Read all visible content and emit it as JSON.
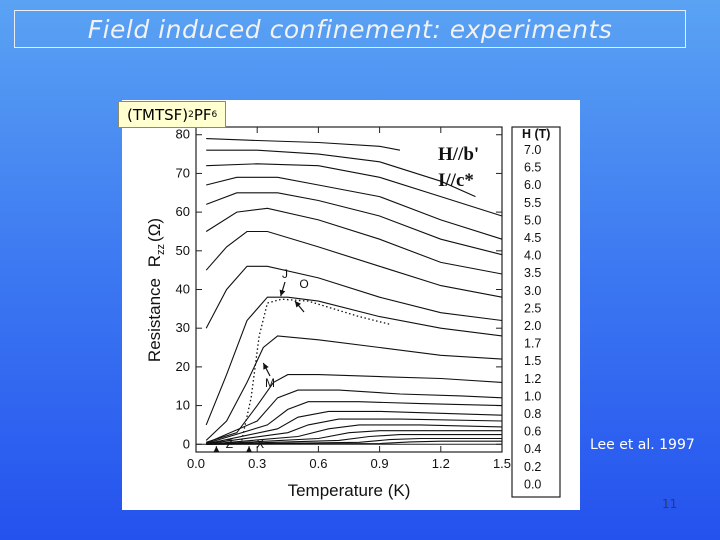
{
  "slide": {
    "title": "Field induced confinement: experiments",
    "citation": "Lee et al. 1997",
    "page_number": "11"
  },
  "compound": {
    "base": "(TMTSF)",
    "sub1": "2",
    "mid": "PF",
    "sub2": "6"
  },
  "chart_data": {
    "type": "line",
    "xlabel": "Temperature (K)",
    "ylabel": "Resistance",
    "ylabel_sub": "R",
    "ylabel_sub_index": "zz",
    "ylabel_unit": "(Ω)",
    "xlim": [
      0.0,
      1.5
    ],
    "ylim": [
      -2,
      82
    ],
    "xticks": [
      "0.0",
      "0.3",
      "0.6",
      "0.9",
      "1.2",
      "1.5"
    ],
    "yticks": [
      "0",
      "10",
      "20",
      "30",
      "40",
      "50",
      "60",
      "70",
      "80"
    ],
    "legend_title": "H (T)",
    "legend": [
      "7.0",
      "6.5",
      "6.0",
      "5.5",
      "5.0",
      "4.5",
      "4.0",
      "3.5",
      "3.0",
      "2.5",
      "2.0",
      "1.7",
      "1.5",
      "1.2",
      "1.0",
      "0.8",
      "0.6",
      "0.4",
      "0.2",
      "0.0"
    ],
    "annotations": {
      "field": "H//b'",
      "current": "I//c*"
    },
    "markers": [
      "J",
      "O",
      "M",
      "Z",
      "X"
    ],
    "series": [
      {
        "name": "7.0",
        "points": [
          [
            0.05,
            79
          ],
          [
            0.3,
            78.5
          ],
          [
            0.6,
            78
          ],
          [
            0.9,
            77
          ],
          [
            1.0,
            76
          ]
        ]
      },
      {
        "name": "6.5",
        "points": [
          [
            0.05,
            76
          ],
          [
            0.3,
            76
          ],
          [
            0.6,
            75
          ],
          [
            0.9,
            73
          ],
          [
            1.2,
            68
          ],
          [
            1.37,
            64
          ]
        ]
      },
      {
        "name": "6.0",
        "points": [
          [
            0.05,
            72
          ],
          [
            0.3,
            72.5
          ],
          [
            0.6,
            72
          ],
          [
            0.9,
            69
          ],
          [
            1.2,
            64
          ],
          [
            1.5,
            59
          ]
        ]
      },
      {
        "name": "5.5",
        "points": [
          [
            0.05,
            67
          ],
          [
            0.2,
            69
          ],
          [
            0.4,
            69
          ],
          [
            0.6,
            67
          ],
          [
            0.9,
            64
          ],
          [
            1.2,
            58
          ],
          [
            1.5,
            53
          ]
        ]
      },
      {
        "name": "5.0",
        "points": [
          [
            0.05,
            62
          ],
          [
            0.2,
            65
          ],
          [
            0.4,
            65
          ],
          [
            0.6,
            63
          ],
          [
            0.9,
            59
          ],
          [
            1.2,
            53
          ],
          [
            1.5,
            49
          ]
        ]
      },
      {
        "name": "4.5",
        "points": [
          [
            0.05,
            55
          ],
          [
            0.2,
            60
          ],
          [
            0.35,
            61
          ],
          [
            0.6,
            58
          ],
          [
            0.9,
            53
          ],
          [
            1.2,
            47
          ],
          [
            1.5,
            44
          ]
        ]
      },
      {
        "name": "4.0",
        "points": [
          [
            0.05,
            45
          ],
          [
            0.15,
            51
          ],
          [
            0.25,
            55
          ],
          [
            0.35,
            55
          ],
          [
            0.6,
            51
          ],
          [
            0.9,
            46
          ],
          [
            1.2,
            41
          ],
          [
            1.5,
            38
          ]
        ]
      },
      {
        "name": "3.5",
        "points": [
          [
            0.05,
            30
          ],
          [
            0.15,
            40
          ],
          [
            0.25,
            46
          ],
          [
            0.35,
            46
          ],
          [
            0.6,
            43
          ],
          [
            0.9,
            38
          ],
          [
            1.2,
            34
          ],
          [
            1.5,
            32
          ]
        ]
      },
      {
        "name": "3.0",
        "points": [
          [
            0.05,
            5
          ],
          [
            0.15,
            18
          ],
          [
            0.25,
            32
          ],
          [
            0.35,
            38
          ],
          [
            0.45,
            38
          ],
          [
            0.6,
            37
          ],
          [
            0.9,
            33
          ],
          [
            1.2,
            30
          ],
          [
            1.5,
            28
          ]
        ]
      },
      {
        "name": "2.5",
        "points": [
          [
            0.05,
            1
          ],
          [
            0.15,
            6
          ],
          [
            0.25,
            16
          ],
          [
            0.33,
            25
          ],
          [
            0.4,
            28
          ],
          [
            0.6,
            27
          ],
          [
            0.9,
            25
          ],
          [
            1.2,
            23
          ],
          [
            1.5,
            22
          ]
        ]
      },
      {
        "name": "2.0",
        "points": [
          [
            0.05,
            0.5
          ],
          [
            0.2,
            3
          ],
          [
            0.3,
            10
          ],
          [
            0.38,
            16
          ],
          [
            0.45,
            18
          ],
          [
            0.6,
            18
          ],
          [
            0.9,
            17.5
          ],
          [
            1.2,
            17
          ],
          [
            1.5,
            16
          ]
        ]
      },
      {
        "name": "1.7",
        "points": [
          [
            0.05,
            0.3
          ],
          [
            0.3,
            6
          ],
          [
            0.4,
            12
          ],
          [
            0.5,
            14
          ],
          [
            0.7,
            14
          ],
          [
            1.0,
            13
          ],
          [
            1.3,
            12.5
          ],
          [
            1.5,
            12
          ]
        ]
      },
      {
        "name": "1.5",
        "points": [
          [
            0.05,
            0.2
          ],
          [
            0.35,
            5
          ],
          [
            0.45,
            9
          ],
          [
            0.55,
            11
          ],
          [
            0.8,
            11
          ],
          [
            1.1,
            10.5
          ],
          [
            1.5,
            10
          ]
        ]
      },
      {
        "name": "1.2",
        "points": [
          [
            0.05,
            0.1
          ],
          [
            0.4,
            4
          ],
          [
            0.5,
            7
          ],
          [
            0.65,
            8.5
          ],
          [
            0.9,
            8.5
          ],
          [
            1.2,
            8
          ],
          [
            1.5,
            7.5
          ]
        ]
      },
      {
        "name": "1.0",
        "points": [
          [
            0.05,
            0.1
          ],
          [
            0.45,
            3
          ],
          [
            0.55,
            5
          ],
          [
            0.7,
            6.5
          ],
          [
            1.0,
            6.5
          ],
          [
            1.5,
            6
          ]
        ]
      },
      {
        "name": "0.8",
        "points": [
          [
            0.05,
            0
          ],
          [
            0.5,
            2
          ],
          [
            0.65,
            4
          ],
          [
            0.8,
            5
          ],
          [
            1.1,
            5
          ],
          [
            1.5,
            4.5
          ]
        ]
      },
      {
        "name": "0.6",
        "points": [
          [
            0.05,
            0
          ],
          [
            0.6,
            1.5
          ],
          [
            0.75,
            3
          ],
          [
            0.9,
            3.5
          ],
          [
            1.2,
            3.5
          ],
          [
            1.5,
            3.5
          ]
        ]
      },
      {
        "name": "0.4",
        "points": [
          [
            0.05,
            0
          ],
          [
            0.7,
            1
          ],
          [
            0.85,
            2
          ],
          [
            1.0,
            2.5
          ],
          [
            1.5,
            2.5
          ]
        ]
      },
      {
        "name": "0.2",
        "points": [
          [
            0.05,
            0
          ],
          [
            0.8,
            0.5
          ],
          [
            0.95,
            1.2
          ],
          [
            1.1,
            1.5
          ],
          [
            1.5,
            1.5
          ]
        ]
      },
      {
        "name": "0.0",
        "points": [
          [
            0.05,
            0
          ],
          [
            0.9,
            0.2
          ],
          [
            1.05,
            0.6
          ],
          [
            1.2,
            0.8
          ],
          [
            1.5,
            0.8
          ]
        ]
      }
    ],
    "dotted_curve": [
      [
        0.22,
        0
      ],
      [
        0.27,
        12
      ],
      [
        0.31,
        28
      ],
      [
        0.35,
        36.5
      ],
      [
        0.42,
        37.5
      ],
      [
        0.55,
        37
      ],
      [
        0.8,
        33
      ],
      [
        0.95,
        31
      ]
    ]
  }
}
